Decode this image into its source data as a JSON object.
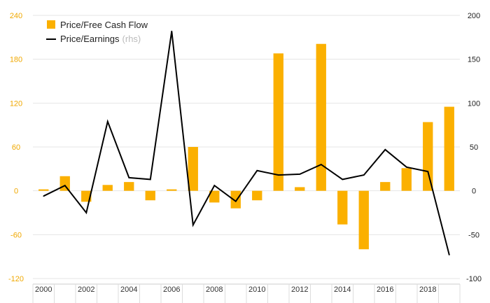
{
  "chart_data": {
    "type": "bar+line",
    "x": [
      2000,
      2001,
      2002,
      2003,
      2004,
      2005,
      2006,
      2007,
      2008,
      2009,
      2010,
      2011,
      2012,
      2013,
      2014,
      2015,
      2016,
      2017,
      2018,
      2019
    ],
    "x_tick_labels": [
      "2000",
      "2002",
      "2004",
      "2006",
      "2008",
      "2010",
      "2012",
      "2014",
      "2016",
      "2018"
    ],
    "series": [
      {
        "name": "Price/Free Cash Flow",
        "kind": "bar",
        "axis": "left",
        "color": "#fbb000",
        "values": [
          2,
          20,
          -15,
          8,
          12,
          -13,
          2,
          60,
          -16,
          -24,
          -13,
          188,
          5,
          201,
          -46,
          -80,
          12,
          31,
          94,
          115
        ]
      },
      {
        "name": "Price/Earnings",
        "kind": "line",
        "axis": "right",
        "color": "#000000",
        "values": [
          -6,
          6,
          -25,
          79,
          15,
          13,
          182,
          -39,
          6,
          -12,
          23,
          18,
          19,
          30,
          13,
          18,
          47,
          27,
          22,
          -73
        ]
      }
    ],
    "legend": [
      {
        "label": "Price/Free Cash Flow",
        "suffix": ""
      },
      {
        "label": "Price/Earnings",
        "suffix": "(rhs)"
      }
    ],
    "y_left": {
      "ylim": [
        -120,
        240
      ],
      "ticks": [
        -120,
        -60,
        0,
        60,
        120,
        180,
        240
      ],
      "color": "#f0a800"
    },
    "y_right": {
      "ylim": [
        -100,
        200
      ],
      "ticks": [
        -100,
        -50,
        0,
        50,
        100,
        150,
        200
      ],
      "color": "#222222"
    },
    "grid": true,
    "legend_position": "top-left"
  }
}
